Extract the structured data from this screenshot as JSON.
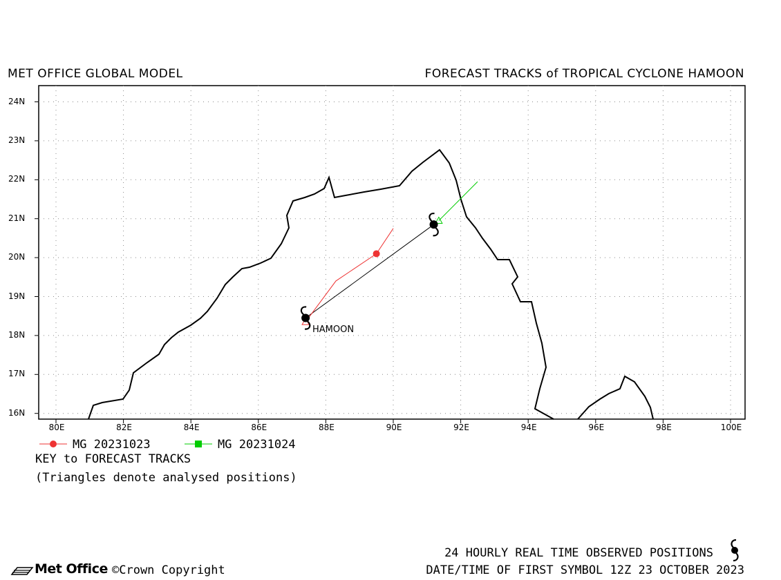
{
  "header": {
    "model": "MET OFFICE GLOBAL MODEL",
    "title": "FORECAST TRACKS of TROPICAL CYCLONE HAMOON"
  },
  "map": {
    "lon_range": [
      79.5,
      101.0
    ],
    "lat_range": [
      15.8,
      24.3
    ],
    "lat_ticks": [
      "24N",
      "23N",
      "22N",
      "21N",
      "20N",
      "19N",
      "18N",
      "17N",
      "16N"
    ],
    "lon_ticks": [
      "80E",
      "82E",
      "84E",
      "86E",
      "88E",
      "90E",
      "92E",
      "94E",
      "96E",
      "98E",
      "100E"
    ],
    "grid": "dotted",
    "storm_label": "HAMOON",
    "colors": {
      "run1": "#ee3333",
      "run2": "#00cc00",
      "observed": "#000000",
      "coast": "#000000"
    }
  },
  "legend": {
    "items": [
      {
        "label": "MG 20231023",
        "color": "#ee3333",
        "marker": "circle"
      },
      {
        "label": "MG 20231024",
        "color": "#00cc00",
        "marker": "square"
      }
    ],
    "key_title": "KEY to FORECAST TRACKS",
    "note": "(Triangles denote analysed positions)"
  },
  "tracks": {
    "observed": [
      [
        87.4,
        18.45
      ],
      [
        91.2,
        20.85
      ]
    ],
    "run1": [
      [
        87.4,
        18.35
      ],
      [
        88.3,
        19.4
      ],
      [
        89.5,
        20.1
      ],
      [
        90.0,
        20.75
      ]
    ],
    "run2": [
      [
        91.35,
        20.95
      ],
      [
        92.5,
        21.95
      ]
    ]
  },
  "footer": {
    "observed_label": "24 HOURLY REAL TIME OBSERVED POSITIONS",
    "first_symbol": "DATE/TIME OF FIRST SYMBOL 12Z 23 OCTOBER 2023",
    "brand": "Met Office",
    "copyright": "©Crown Copyright"
  }
}
